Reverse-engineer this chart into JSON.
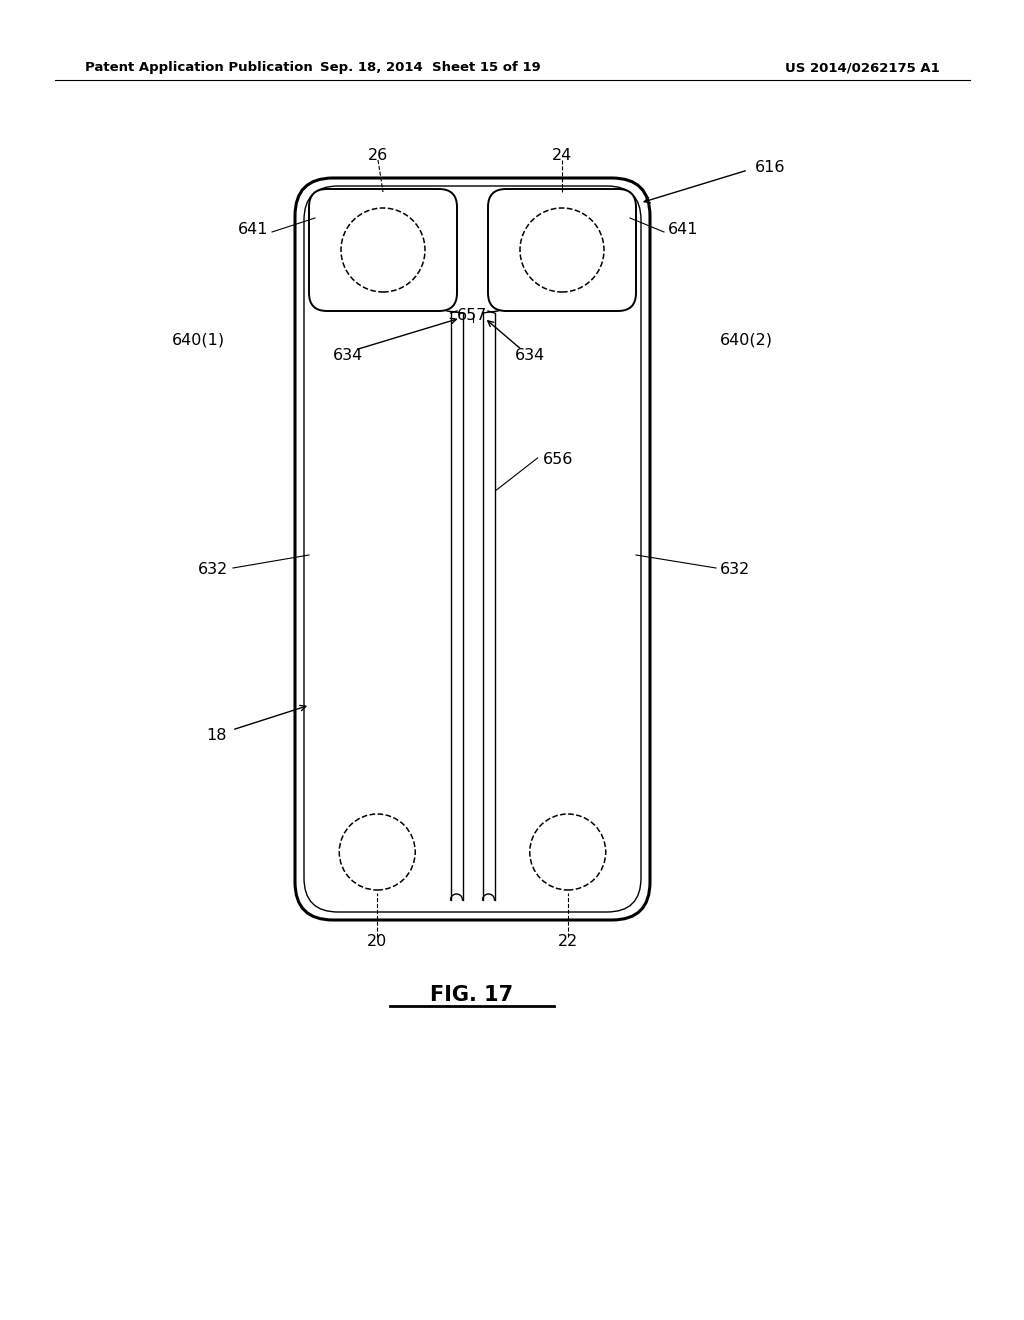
{
  "bg_color": "#ffffff",
  "header_left": "Patent Application Publication",
  "header_center": "Sep. 18, 2014  Sheet 15 of 19",
  "header_right": "US 2014/0262175 A1",
  "figure_label": "FIG. 17",
  "line_color": "#000000"
}
